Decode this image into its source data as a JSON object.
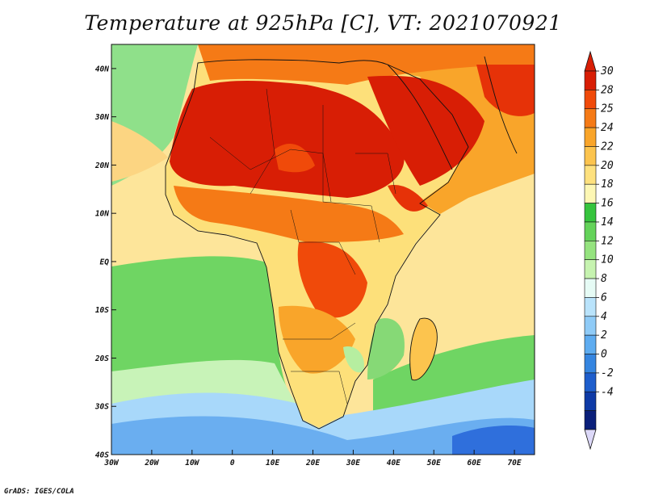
{
  "title": "Temperature at 925hPa [C], VT: 2021070921",
  "credit": "GrADS: IGES/COLA",
  "map": {
    "extent": {
      "lon_min": -30,
      "lon_max": 75,
      "lat_min": -40,
      "lat_max": 45
    },
    "lat_ticks": [
      {
        "value": 40,
        "label": "40N"
      },
      {
        "value": 30,
        "label": "30N"
      },
      {
        "value": 20,
        "label": "20N"
      },
      {
        "value": 10,
        "label": "10N"
      },
      {
        "value": 0,
        "label": "EQ"
      },
      {
        "value": -10,
        "label": "10S"
      },
      {
        "value": -20,
        "label": "20S"
      },
      {
        "value": -30,
        "label": "30S"
      },
      {
        "value": -40,
        "label": "40S"
      }
    ],
    "lon_ticks": [
      {
        "value": -30,
        "label": "30W"
      },
      {
        "value": -20,
        "label": "20W"
      },
      {
        "value": -10,
        "label": "10W"
      },
      {
        "value": 0,
        "label": "0"
      },
      {
        "value": 10,
        "label": "10E"
      },
      {
        "value": 20,
        "label": "20E"
      },
      {
        "value": 30,
        "label": "30E"
      },
      {
        "value": 40,
        "label": "40E"
      },
      {
        "value": 50,
        "label": "50E"
      },
      {
        "value": 60,
        "label": "60E"
      },
      {
        "value": 70,
        "label": "70E"
      }
    ]
  },
  "colorbar": {
    "labels": [
      "30",
      "28",
      "25",
      "24",
      "22",
      "20",
      "18",
      "16",
      "14",
      "12",
      "10",
      "8",
      "6",
      "4",
      "2",
      "0",
      "-2",
      "-4"
    ],
    "colors": [
      "#d81e05",
      "#f04a0a",
      "#f57a16",
      "#f9a52a",
      "#fcc44e",
      "#fee17e",
      "#fdf7b4",
      "#36c43d",
      "#64d35a",
      "#95e37f",
      "#c6f3b0",
      "#e6fbf5",
      "#b9e3fb",
      "#8fcbf7",
      "#5eacf0",
      "#3585e0",
      "#1e5ecc",
      "#0e3aa6",
      "#0a1f7a"
    ],
    "top_triangle": "#d81e05",
    "bottom_triangle": "#dcd8f8"
  }
}
